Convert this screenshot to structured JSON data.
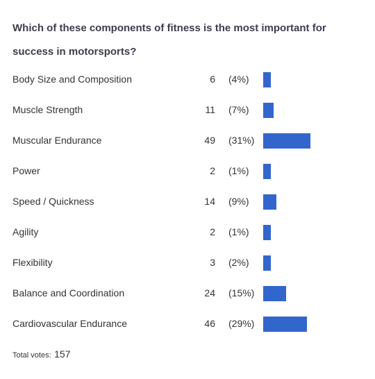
{
  "poll": {
    "question": "Which of these components of fitness is the most important for success in motorsports?",
    "bar_color": "#3366cc"
  },
  "chart_data": {
    "type": "bar",
    "orientation": "horizontal",
    "title": "Which of these components of fitness is the most important for success in motorsports?",
    "categories": [
      "Body Size and Composition",
      "Muscle Strength",
      "Muscular Endurance",
      "Power",
      "Speed / Quickness",
      "Agility",
      "Flexibility",
      "Balance and Coordination",
      "Cardiovascular Endurance"
    ],
    "values": [
      6,
      11,
      49,
      2,
      14,
      2,
      3,
      24,
      46
    ],
    "percent_labels": [
      "(4%)",
      "(7%)",
      "(31%)",
      "(1%)",
      "(9%)",
      "(1%)",
      "(2%)",
      "(15%)",
      "(29%)"
    ],
    "total_label": "Total votes:",
    "total": 157
  }
}
